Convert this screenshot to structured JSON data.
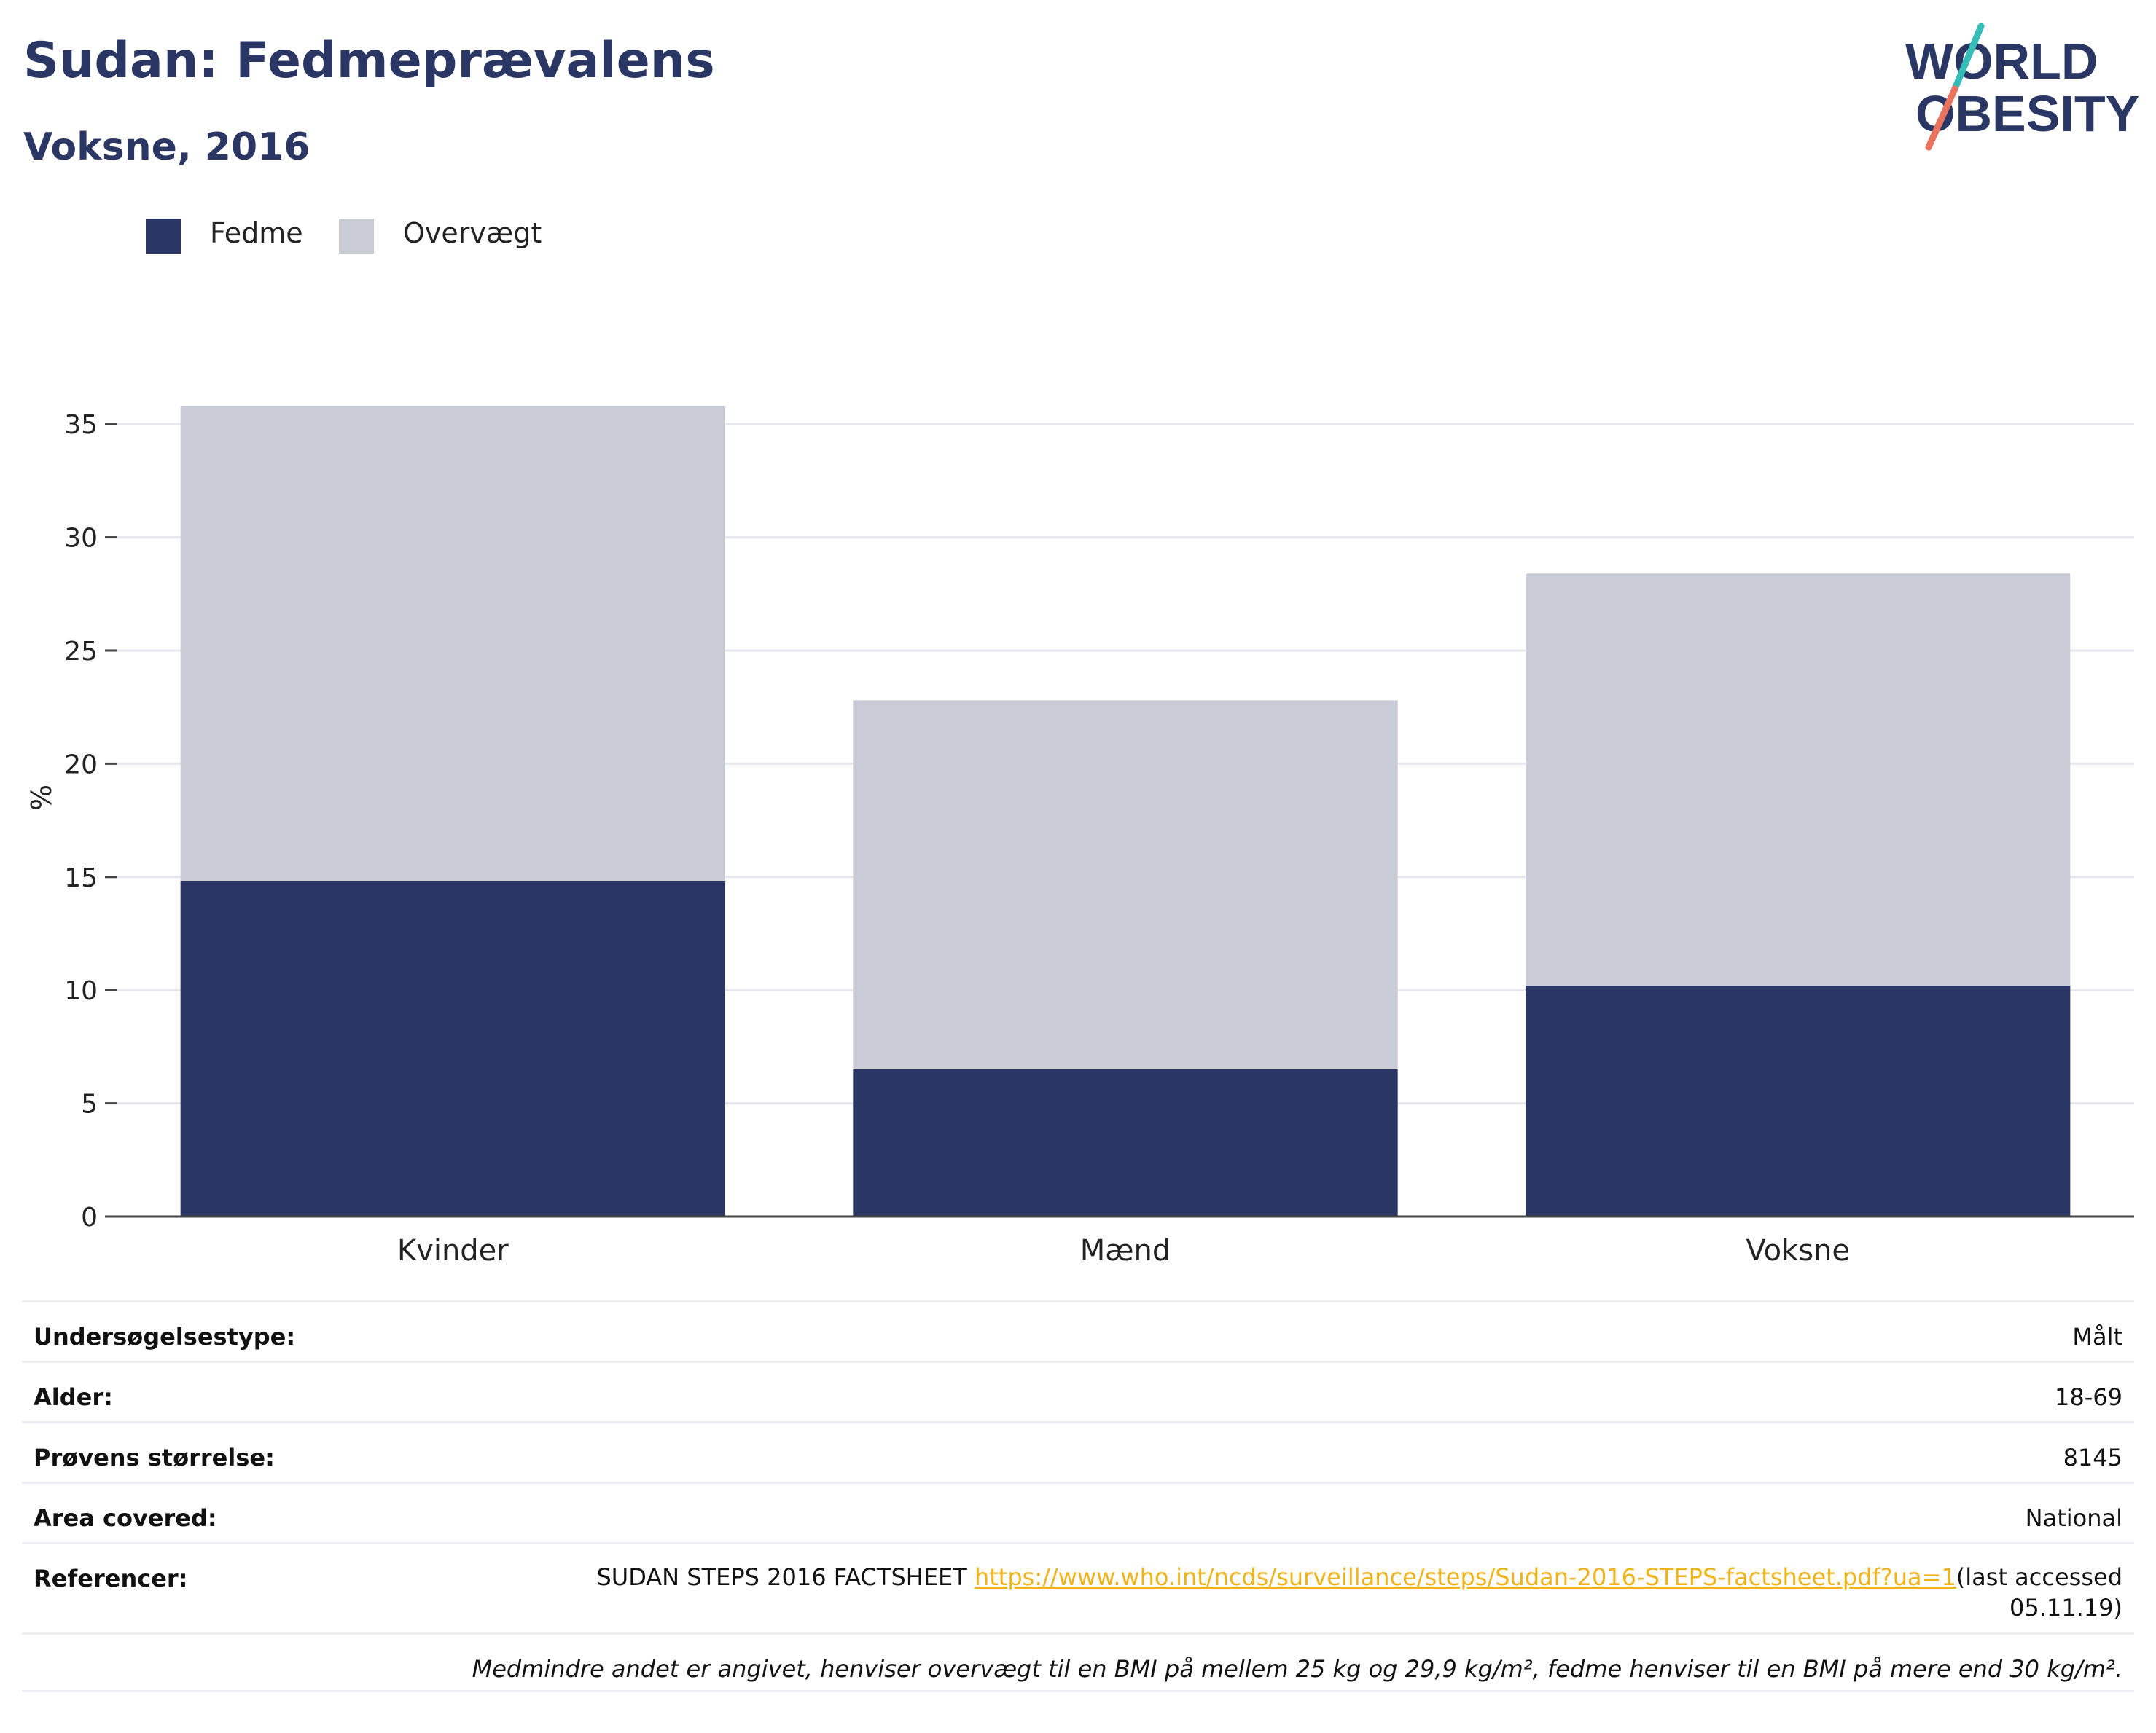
{
  "header": {
    "title": "Sudan: Fedmeprævalens",
    "subtitle": "Voksne, 2016"
  },
  "logo": {
    "line1": "WORLD",
    "line2": "OBESITY",
    "colors": {
      "text": "#2a3764",
      "slash_top": "#36bdb7",
      "slash_bottom": "#e8735f"
    }
  },
  "legend": {
    "items": [
      {
        "label": "Fedme",
        "color": "#2a3764"
      },
      {
        "label": "Overvægt",
        "color": "#c9cbd7"
      }
    ]
  },
  "chart_data": {
    "type": "bar",
    "stacked": true,
    "categories": [
      "Kvinder",
      "Mænd",
      "Voksne"
    ],
    "series": [
      {
        "name": "Fedme",
        "color": "#2a3764",
        "values": [
          14.8,
          6.5,
          10.2
        ]
      },
      {
        "name": "Overvægt",
        "color": "#c9cbd7",
        "values": [
          21.0,
          16.3,
          18.2
        ]
      }
    ],
    "ylabel": "%",
    "ylim": [
      0,
      37
    ],
    "yticks": [
      0,
      5,
      10,
      15,
      20,
      25,
      30,
      35
    ],
    "grid": true,
    "legend_position": "top-left"
  },
  "info": {
    "survey_type": {
      "label": "Undersøgelsestype:",
      "value": "Målt"
    },
    "age": {
      "label": "Alder:",
      "value": "18-69"
    },
    "sample_size": {
      "label": "Prøvens størrelse:",
      "value": "8145"
    },
    "area": {
      "label": "Area covered:",
      "value": "National"
    },
    "references": {
      "label": "Referencer:",
      "source": "SUDAN STEPS 2016 FACTSHEET ",
      "url": "https://www.who.int/ncds/surveillance/steps/Sudan-2016-STEPS-factsheet.pdf?ua=1",
      "suffix": "(last accessed 05.11.19)"
    },
    "note": "Medmindre andet er angivet, henviser overvægt til en BMI på mellem 25 kg og 29,9 kg/m², fedme henviser til en BMI på mere end 30 kg/m²."
  }
}
